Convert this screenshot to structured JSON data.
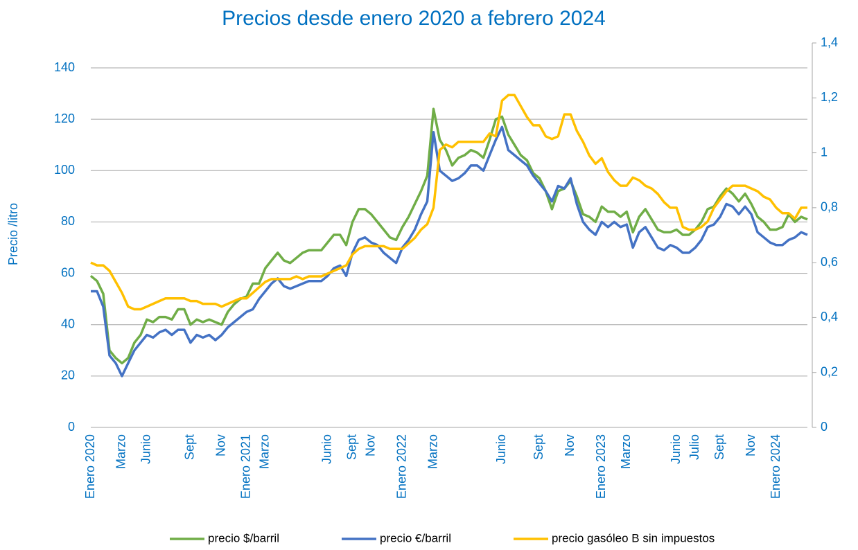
{
  "chart_data": {
    "type": "line",
    "title": "Precios desde enero 2020 a febrero 2024",
    "y_label": "Precio /litro",
    "categories": [
      "Enero 2020",
      null,
      null,
      null,
      null,
      "Marzo",
      null,
      null,
      null,
      "Junio",
      null,
      null,
      null,
      null,
      null,
      null,
      "Sept",
      null,
      null,
      null,
      null,
      "Nov",
      null,
      null,
      null,
      "Enero 2021",
      null,
      null,
      "Marzo",
      null,
      null,
      null,
      null,
      null,
      null,
      null,
      null,
      null,
      "Junio",
      null,
      null,
      null,
      "Sept",
      null,
      null,
      "Nov",
      null,
      null,
      null,
      null,
      "Enero 2022",
      null,
      null,
      null,
      null,
      "Marzo",
      null,
      null,
      null,
      null,
      null,
      null,
      null,
      null,
      null,
      null,
      "Junio",
      null,
      null,
      null,
      null,
      null,
      "Sept",
      null,
      null,
      null,
      null,
      "Nov",
      null,
      null,
      null,
      null,
      "Enero 2023",
      null,
      null,
      null,
      "Marzo",
      null,
      null,
      null,
      null,
      null,
      null,
      null,
      "Junio",
      null,
      null,
      "Julio",
      null,
      null,
      null,
      "Sept",
      null,
      null,
      null,
      null,
      "Nov",
      null,
      null,
      null,
      "Enero 2024",
      null,
      null,
      null,
      null,
      null
    ],
    "series": [
      {
        "name": "precio $/barril",
        "color": "#70ad47",
        "values": [
          59,
          57,
          52,
          30,
          27,
          25,
          27,
          33,
          36,
          42,
          41,
          43,
          43,
          42,
          46,
          46,
          40,
          42,
          41,
          42,
          41,
          40,
          45,
          48,
          50,
          51,
          56,
          56,
          62,
          65,
          68,
          65,
          64,
          66,
          68,
          69,
          69,
          69,
          72,
          75,
          75,
          71,
          80,
          85,
          85,
          83,
          80,
          77,
          74,
          73,
          78,
          82,
          87,
          92,
          98,
          124,
          112,
          108,
          102,
          105,
          106,
          108,
          107,
          105,
          112,
          120,
          121,
          114,
          110,
          106,
          104,
          99,
          97,
          92,
          85,
          92,
          93,
          96,
          90,
          83,
          82,
          80,
          86,
          84,
          84,
          82,
          84,
          76,
          82,
          85,
          81,
          77,
          76,
          76,
          77,
          75,
          75,
          77,
          80,
          85,
          86,
          90,
          93,
          91,
          88,
          91,
          87,
          82,
          80,
          77,
          77,
          78,
          83,
          80,
          82,
          81
        ]
      },
      {
        "name": "precio €/barril",
        "color": "#4472c4",
        "values": [
          53,
          53,
          47,
          28,
          25,
          20,
          25,
          30,
          33,
          36,
          35,
          37,
          38,
          36,
          38,
          38,
          33,
          36,
          35,
          36,
          34,
          36,
          39,
          41,
          43,
          45,
          46,
          50,
          53,
          56,
          58,
          55,
          54,
          55,
          56,
          57,
          57,
          57,
          59,
          62,
          63,
          59,
          68,
          73,
          74,
          72,
          71,
          68,
          66,
          64,
          70,
          73,
          77,
          83,
          88,
          115,
          100,
          98,
          96,
          97,
          99,
          102,
          102,
          100,
          106,
          112,
          117,
          108,
          106,
          104,
          102,
          98,
          95,
          92,
          88,
          94,
          93,
          97,
          87,
          80,
          77,
          75,
          80,
          78,
          80,
          78,
          79,
          70,
          76,
          78,
          74,
          70,
          69,
          71,
          70,
          68,
          68,
          70,
          73,
          78,
          79,
          82,
          87,
          86,
          83,
          86,
          83,
          76,
          74,
          72,
          71,
          71,
          73,
          74,
          76,
          75
        ]
      },
      {
        "name": "precio gasóleo B sin impuestos",
        "color": "#ffc000",
        "axis": "y2",
        "values": [
          0.6,
          0.59,
          0.59,
          0.57,
          0.53,
          0.49,
          0.44,
          0.43,
          0.43,
          0.44,
          0.45,
          0.46,
          0.47,
          0.47,
          0.47,
          0.47,
          0.46,
          0.46,
          0.45,
          0.45,
          0.45,
          0.44,
          0.45,
          0.46,
          0.47,
          0.47,
          0.49,
          0.51,
          0.53,
          0.54,
          0.54,
          0.54,
          0.54,
          0.55,
          0.54,
          0.55,
          0.55,
          0.55,
          0.56,
          0.57,
          0.58,
          0.59,
          0.63,
          0.65,
          0.66,
          0.66,
          0.66,
          0.66,
          0.65,
          0.65,
          0.65,
          0.67,
          0.69,
          0.72,
          0.74,
          0.8,
          1.01,
          1.03,
          1.02,
          1.04,
          1.04,
          1.04,
          1.04,
          1.04,
          1.07,
          1.06,
          1.19,
          1.21,
          1.21,
          1.17,
          1.13,
          1.1,
          1.1,
          1.06,
          1.05,
          1.06,
          1.14,
          1.14,
          1.08,
          1.04,
          0.99,
          0.96,
          0.98,
          0.93,
          0.9,
          0.88,
          0.88,
          0.91,
          0.9,
          0.88,
          0.87,
          0.85,
          0.82,
          0.8,
          0.8,
          0.73,
          0.72,
          0.72,
          0.73,
          0.75,
          0.8,
          0.83,
          0.86,
          0.88,
          0.88,
          0.88,
          0.87,
          0.86,
          0.84,
          0.83,
          0.8,
          0.78,
          0.78,
          0.76,
          0.8,
          0.8
        ]
      }
    ],
    "ylim": [
      0,
      140
    ],
    "yticks": [
      0,
      20,
      40,
      60,
      80,
      100,
      120,
      140
    ],
    "y2lim": [
      0,
      1.4
    ],
    "y2ticks": [
      0,
      {
        "value": 0.2,
        "label": "0,2"
      },
      {
        "value": 0.4,
        "label": "0,4"
      },
      {
        "value": 0.6,
        "label": "0,6"
      },
      {
        "value": 0.8,
        "label": "0,8"
      },
      1,
      {
        "value": 1.2,
        "label": "1,2"
      },
      {
        "value": 1.4,
        "label": "1,4"
      }
    ],
    "grid": true,
    "legend": "bottom"
  }
}
